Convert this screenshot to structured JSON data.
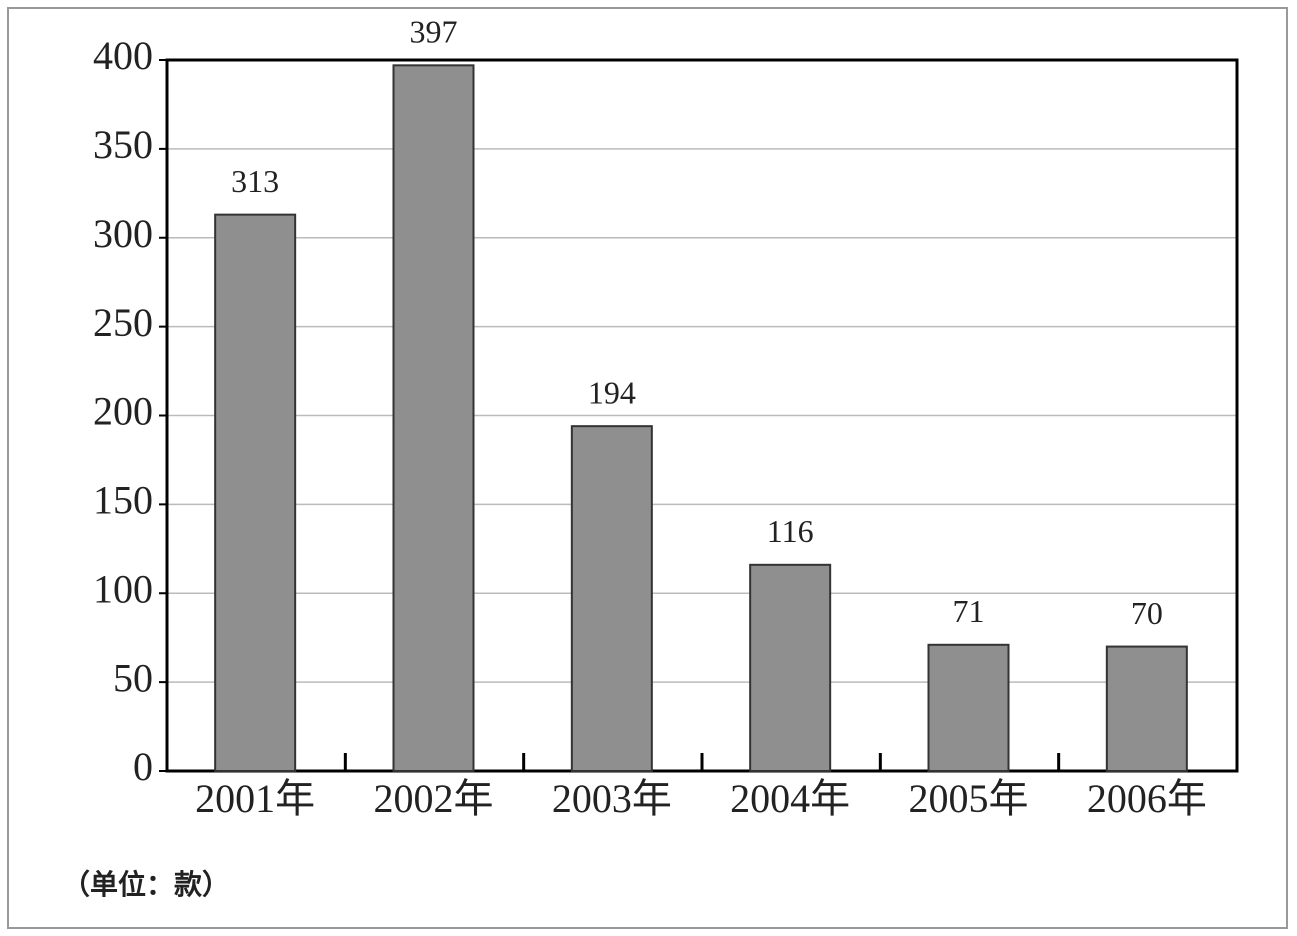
{
  "chart_data": {
    "type": "bar",
    "categories": [
      "2001年",
      "2002年",
      "2003年",
      "2004年",
      "2005年",
      "2006年"
    ],
    "values": [
      313,
      397,
      194,
      116,
      71,
      70
    ],
    "color": "#8f8f8f",
    "ylim": [
      0,
      400
    ],
    "yticks": [
      0,
      50,
      100,
      150,
      200,
      250,
      300,
      350,
      400
    ],
    "grid": true,
    "note": "（单位：款）"
  }
}
